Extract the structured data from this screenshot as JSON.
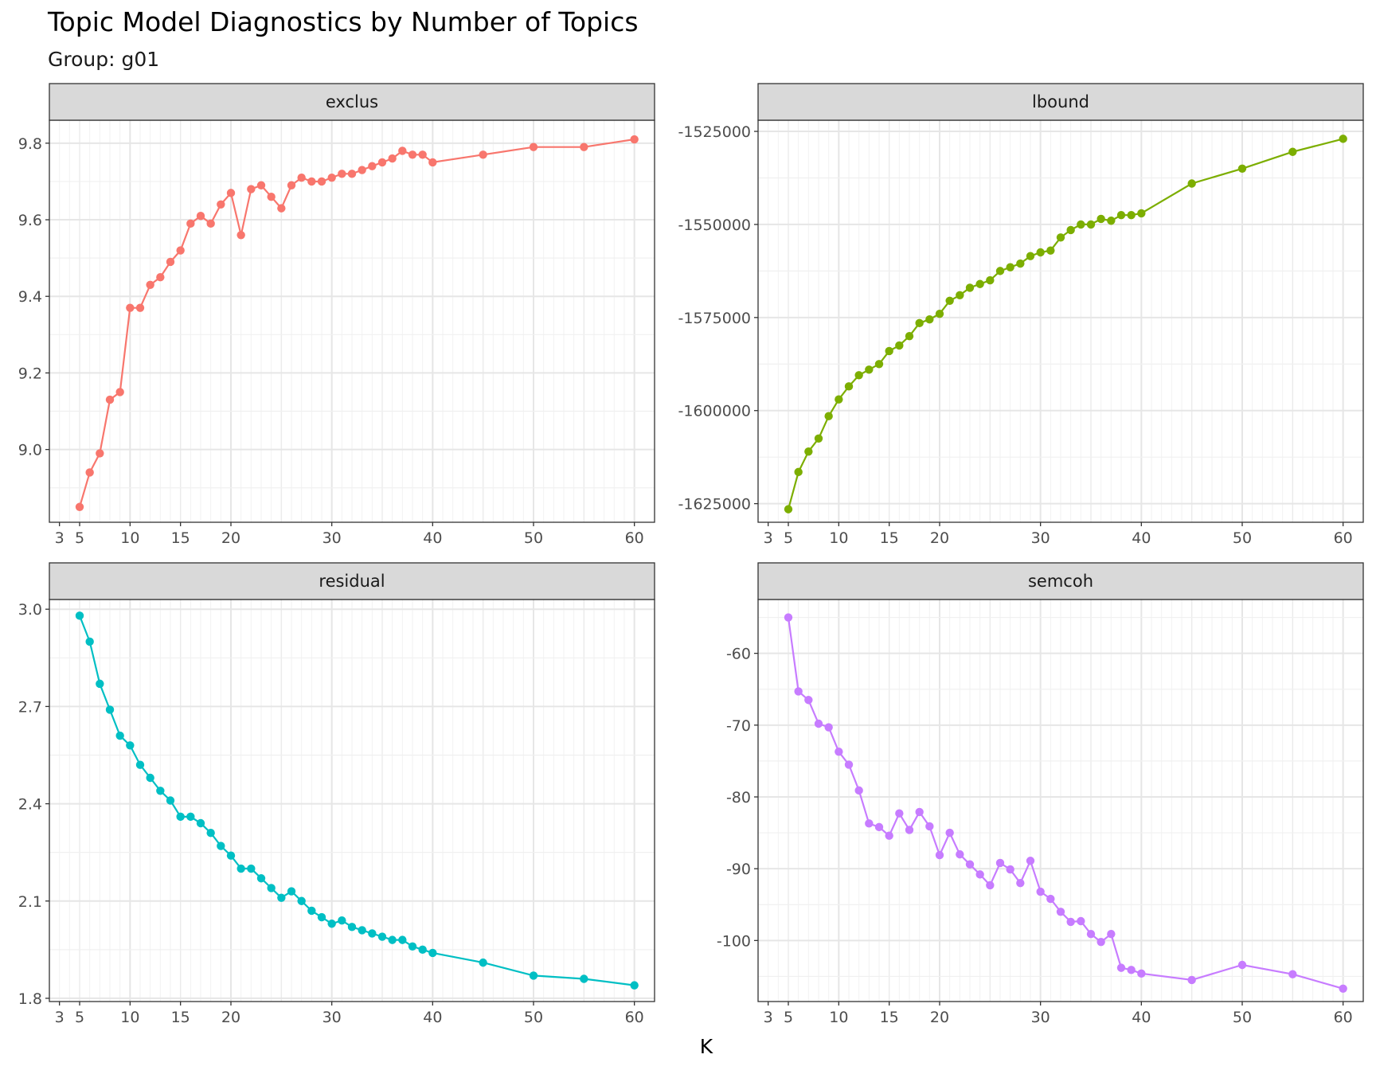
{
  "chart_data": {
    "type": "line",
    "title": "Topic Model Diagnostics by Number of Topics",
    "subtitle": "Group: g01",
    "xlabel": "K",
    "x_ticks": [
      3,
      5,
      10,
      15,
      20,
      30,
      40,
      50,
      60
    ],
    "x_range": [
      2,
      62
    ],
    "grid": true,
    "panels": [
      {
        "name": "exclus",
        "color": "#F8766D",
        "ylim": [
          8.81,
          9.86
        ],
        "y_ticks": [
          9.0,
          9.2,
          9.4,
          9.6,
          9.8
        ],
        "y_tick_labels": [
          "9.0",
          "9.2",
          "9.4",
          "9.6",
          "9.8"
        ],
        "x": [
          5,
          6,
          7,
          8,
          9,
          10,
          11,
          12,
          13,
          14,
          15,
          16,
          17,
          18,
          19,
          20,
          21,
          22,
          23,
          24,
          25,
          26,
          27,
          28,
          29,
          30,
          31,
          32,
          33,
          34,
          35,
          36,
          37,
          38,
          39,
          40,
          45,
          50,
          55,
          60
        ],
        "values": [
          8.85,
          8.94,
          8.99,
          9.13,
          9.15,
          9.37,
          9.37,
          9.43,
          9.45,
          9.49,
          9.52,
          9.59,
          9.61,
          9.59,
          9.64,
          9.67,
          9.56,
          9.68,
          9.69,
          9.66,
          9.63,
          9.69,
          9.71,
          9.7,
          9.7,
          9.71,
          9.72,
          9.72,
          9.73,
          9.74,
          9.75,
          9.76,
          9.78,
          9.77,
          9.77,
          9.75,
          9.77,
          9.79,
          9.79,
          9.81
        ]
      },
      {
        "name": "lbound",
        "color": "#7CAE00",
        "ylim": [
          -1630000,
          -1522000
        ],
        "y_ticks": [
          -1625000,
          -1600000,
          -1575000,
          -1550000,
          -1525000
        ],
        "y_tick_labels": [
          "-1625000",
          "-1600000",
          "-1575000",
          "-1550000",
          "-1525000"
        ],
        "x": [
          5,
          6,
          7,
          8,
          9,
          10,
          11,
          12,
          13,
          14,
          15,
          16,
          17,
          18,
          19,
          20,
          21,
          22,
          23,
          24,
          25,
          26,
          27,
          28,
          29,
          30,
          31,
          32,
          33,
          34,
          35,
          36,
          37,
          38,
          39,
          40,
          45,
          50,
          55,
          60
        ],
        "values": [
          -1626500,
          -1616500,
          -1611000,
          -1607500,
          -1601500,
          -1597000,
          -1593500,
          -1590500,
          -1589000,
          -1587500,
          -1584000,
          -1582500,
          -1580000,
          -1576500,
          -1575500,
          -1574000,
          -1570500,
          -1569000,
          -1567000,
          -1566000,
          -1565000,
          -1562500,
          -1561500,
          -1560500,
          -1558500,
          -1557500,
          -1557000,
          -1553500,
          -1551500,
          -1550000,
          -1550000,
          -1548500,
          -1549000,
          -1547500,
          -1547500,
          -1547000,
          -1539000,
          -1535000,
          -1530500,
          -1527000
        ]
      },
      {
        "name": "residual",
        "color": "#00BFC4",
        "ylim": [
          1.79,
          3.03
        ],
        "y_ticks": [
          1.8,
          2.1,
          2.4,
          2.7,
          3.0
        ],
        "y_tick_labels": [
          "1.8",
          "2.1",
          "2.4",
          "2.7",
          "3.0"
        ],
        "x": [
          5,
          6,
          7,
          8,
          9,
          10,
          11,
          12,
          13,
          14,
          15,
          16,
          17,
          18,
          19,
          20,
          21,
          22,
          23,
          24,
          25,
          26,
          27,
          28,
          29,
          30,
          31,
          32,
          33,
          34,
          35,
          36,
          37,
          38,
          39,
          40,
          45,
          50,
          55,
          60
        ],
        "values": [
          2.98,
          2.9,
          2.77,
          2.69,
          2.61,
          2.58,
          2.52,
          2.48,
          2.44,
          2.41,
          2.36,
          2.36,
          2.34,
          2.31,
          2.27,
          2.24,
          2.2,
          2.2,
          2.17,
          2.14,
          2.11,
          2.13,
          2.1,
          2.07,
          2.05,
          2.03,
          2.04,
          2.02,
          2.01,
          2.0,
          1.99,
          1.98,
          1.98,
          1.96,
          1.95,
          1.94,
          1.91,
          1.87,
          1.86,
          1.84
        ]
      },
      {
        "name": "semcoh",
        "color": "#C77CFF",
        "ylim": [
          -108.5,
          -52.5
        ],
        "y_ticks": [
          -100,
          -90,
          -80,
          -70,
          -60
        ],
        "y_tick_labels": [
          "-100",
          "-90",
          "-80",
          "-70",
          "-60"
        ],
        "x": [
          5,
          6,
          7,
          8,
          9,
          10,
          11,
          12,
          13,
          14,
          15,
          16,
          17,
          18,
          19,
          20,
          21,
          22,
          23,
          24,
          25,
          26,
          27,
          28,
          29,
          30,
          31,
          32,
          33,
          34,
          35,
          36,
          37,
          38,
          39,
          40,
          45,
          50,
          55,
          60
        ],
        "values": [
          -55.0,
          -65.3,
          -66.5,
          -69.8,
          -70.3,
          -73.7,
          -75.5,
          -79.1,
          -83.7,
          -84.2,
          -85.4,
          -82.3,
          -84.6,
          -82.1,
          -84.1,
          -88.1,
          -85.0,
          -88.0,
          -89.4,
          -90.8,
          -92.3,
          -89.2,
          -90.1,
          -92.0,
          -88.9,
          -93.2,
          -94.2,
          -96.0,
          -97.4,
          -97.3,
          -99.1,
          -100.2,
          -99.1,
          -103.8,
          -104.1,
          -104.6,
          -105.5,
          -103.4,
          -104.7,
          -106.7
        ]
      }
    ]
  }
}
